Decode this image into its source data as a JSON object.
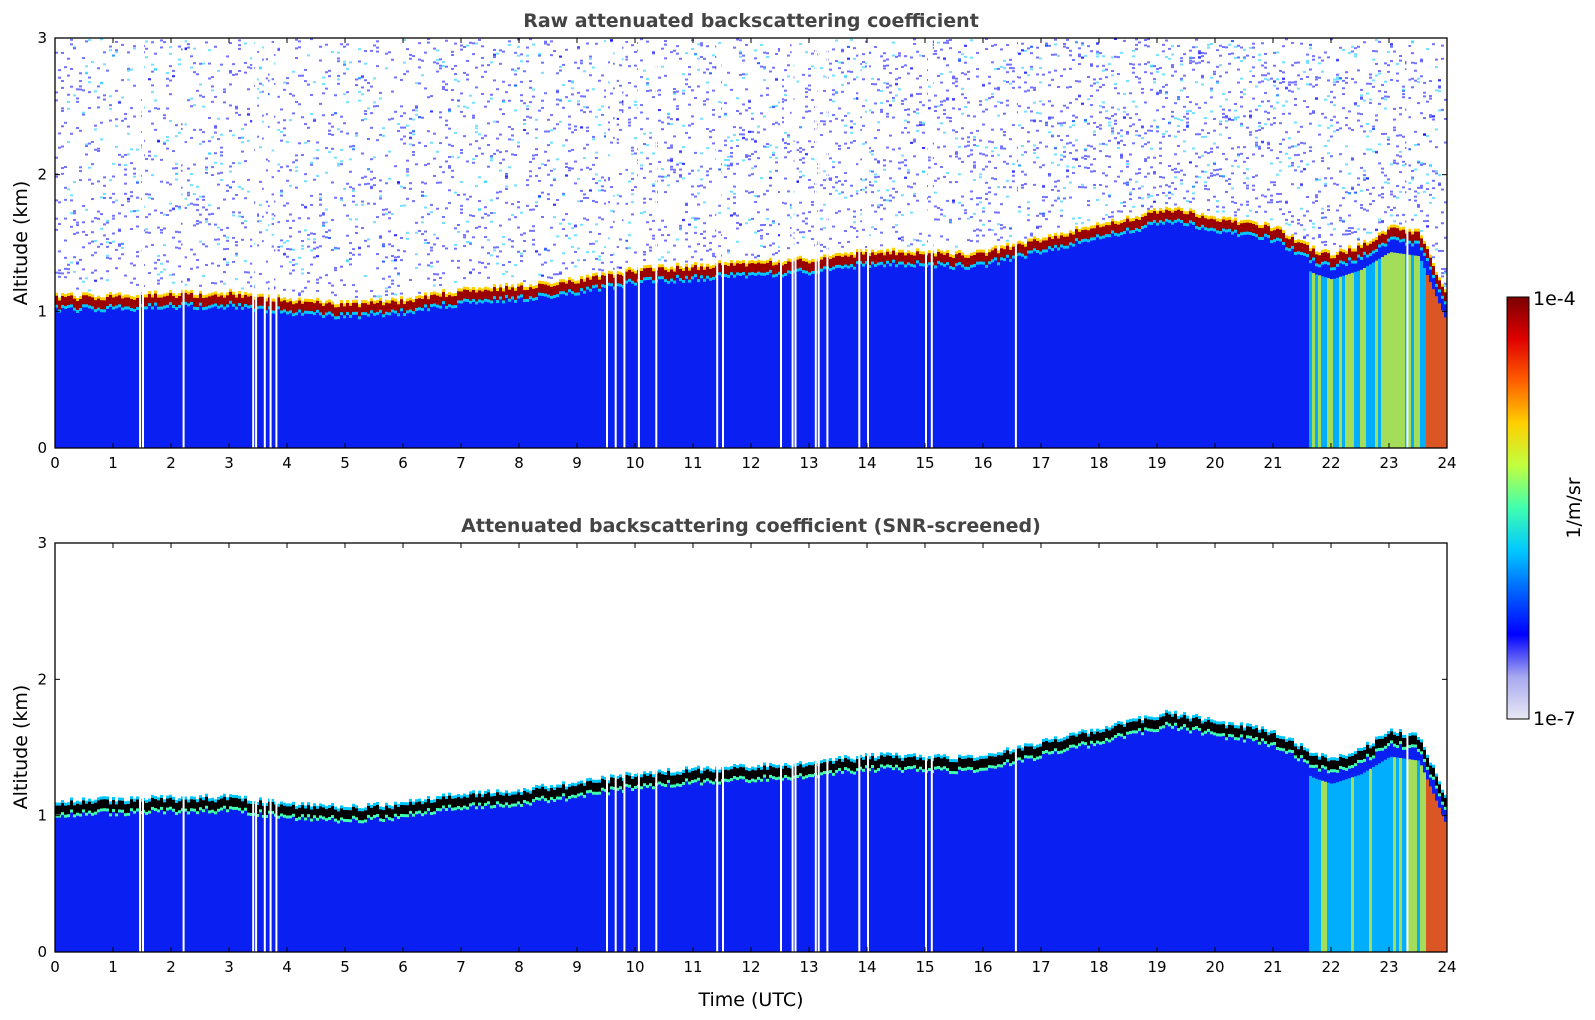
{
  "chart_data": [
    {
      "type": "heatmap",
      "title": "Raw attenuated backscattering coefficient",
      "xlabel": "",
      "ylabel": "Altitude (km)",
      "xlim": [
        0,
        24
      ],
      "ylim": [
        0,
        3
      ],
      "xticks": [
        "0",
        "1",
        "2",
        "3",
        "4",
        "5",
        "6",
        "7",
        "8",
        "9",
        "10",
        "11",
        "12",
        "13",
        "14",
        "15",
        "16",
        "17",
        "18",
        "19",
        "20",
        "21",
        "22",
        "23",
        "24"
      ],
      "yticks": [
        "0",
        "1",
        "2",
        "3"
      ],
      "screened": false,
      "cloud_base_km": [
        [
          0,
          1.07
        ],
        [
          1,
          1.08
        ],
        [
          2,
          1.09
        ],
        [
          3,
          1.1
        ],
        [
          4,
          1.05
        ],
        [
          5,
          1.02
        ],
        [
          6,
          1.05
        ],
        [
          7,
          1.12
        ],
        [
          8,
          1.15
        ],
        [
          9,
          1.2
        ],
        [
          10,
          1.27
        ],
        [
          11,
          1.3
        ],
        [
          12,
          1.32
        ],
        [
          13,
          1.35
        ],
        [
          14,
          1.4
        ],
        [
          15,
          1.4
        ],
        [
          15.8,
          1.38
        ],
        [
          19.2,
          1.72
        ],
        [
          20,
          1.65
        ],
        [
          21,
          1.58
        ],
        [
          21.7,
          1.42
        ],
        [
          22,
          1.38
        ],
        [
          22.5,
          1.45
        ],
        [
          23,
          1.58
        ],
        [
          23.5,
          1.55
        ],
        [
          24,
          1.05
        ]
      ],
      "data_gaps_utc": [
        1.45,
        1.5,
        2.2,
        3.4,
        3.45,
        3.6,
        3.7,
        3.8,
        9.5,
        9.65,
        9.8,
        10.05,
        10.35,
        11.4,
        11.5,
        12.5,
        12.7,
        12.75,
        13.1,
        13.15,
        13.3,
        13.85,
        14.0,
        15.0,
        15.1,
        16.55,
        23.3
      ]
    },
    {
      "type": "heatmap",
      "title": "Attenuated backscattering coefficient (SNR-screened)",
      "xlabel": "Time (UTC)",
      "ylabel": "Altitude (km)",
      "xlim": [
        0,
        24
      ],
      "ylim": [
        0,
        3
      ],
      "xticks": [
        "0",
        "1",
        "2",
        "3",
        "4",
        "5",
        "6",
        "7",
        "8",
        "9",
        "10",
        "11",
        "12",
        "13",
        "14",
        "15",
        "16",
        "17",
        "18",
        "19",
        "20",
        "21",
        "22",
        "23",
        "24"
      ],
      "yticks": [
        "0",
        "1",
        "2",
        "3"
      ],
      "screened": true,
      "cloud_base_km": [
        [
          0,
          1.07
        ],
        [
          1,
          1.08
        ],
        [
          2,
          1.09
        ],
        [
          3,
          1.1
        ],
        [
          4,
          1.05
        ],
        [
          5,
          1.02
        ],
        [
          6,
          1.05
        ],
        [
          7,
          1.12
        ],
        [
          8,
          1.15
        ],
        [
          9,
          1.2
        ],
        [
          10,
          1.27
        ],
        [
          11,
          1.3
        ],
        [
          12,
          1.32
        ],
        [
          13,
          1.35
        ],
        [
          14,
          1.4
        ],
        [
          15,
          1.4
        ],
        [
          15.8,
          1.38
        ],
        [
          19.2,
          1.72
        ],
        [
          20,
          1.65
        ],
        [
          21,
          1.58
        ],
        [
          21.7,
          1.42
        ],
        [
          22,
          1.38
        ],
        [
          22.5,
          1.45
        ],
        [
          23,
          1.58
        ],
        [
          23.5,
          1.55
        ],
        [
          24,
          1.05
        ]
      ],
      "data_gaps_utc": [
        1.45,
        1.5,
        2.2,
        3.4,
        3.45,
        3.6,
        3.7,
        3.8,
        9.5,
        9.65,
        9.8,
        10.05,
        10.35,
        11.4,
        11.5,
        12.5,
        12.7,
        12.75,
        13.1,
        13.15,
        13.3,
        13.85,
        14.0,
        15.0,
        15.1,
        16.55,
        23.3
      ]
    }
  ],
  "colorbar": {
    "label": "1/m/sr",
    "min_label": "1e-7",
    "max_label": "1e-4",
    "scale": "log",
    "colormap": "jet",
    "colors": [
      "#e8e8f5",
      "#a8a8f0",
      "#0000ff",
      "#0060ff",
      "#00c8ff",
      "#40ffb0",
      "#c0ff40",
      "#ffd000",
      "#ff6000",
      "#e00000",
      "#7a0000"
    ]
  }
}
